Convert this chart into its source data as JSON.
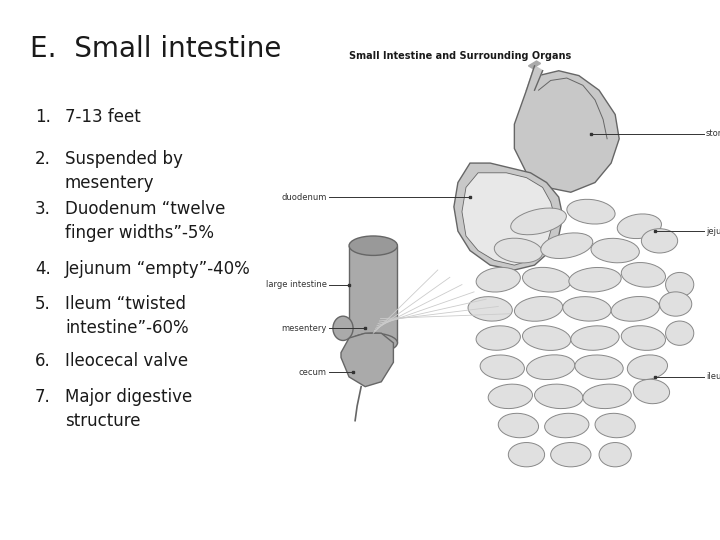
{
  "title": "E.  Small intestine",
  "title_fontsize": 20,
  "title_fontweight": "normal",
  "background_color": "#ffffff",
  "text_color": "#1a1a1a",
  "list_items": [
    {
      "num": "1.",
      "text": "7-13 feet",
      "lines": 1
    },
    {
      "num": "2.",
      "text": "Suspended by\nmesentery",
      "lines": 2
    },
    {
      "num": "3.",
      "text": "Duodenum “twelve\nfinger widths”-5%",
      "lines": 2
    },
    {
      "num": "4.",
      "text": "Jejunum “empty”-40%",
      "lines": 1
    },
    {
      "num": "5.",
      "text": "Ileum “twisted\nintestine”-60%",
      "lines": 2
    },
    {
      "num": "6.",
      "text": "Ileocecal valve",
      "lines": 1
    },
    {
      "num": "7.",
      "text": "Major digestive\nstructure",
      "lines": 2
    }
  ],
  "list_fontsize": 12,
  "diagram_title": "Small Intestine and Surrounding Organs",
  "diagram_title_fontsize": 7,
  "ann_fontsize": 6,
  "gray_fill": "#c8c8c8",
  "gray_stroke": "#666666",
  "light_gray": "#dcdcdc",
  "dark_gray": "#aaaaaa",
  "ann_color": "#333333"
}
